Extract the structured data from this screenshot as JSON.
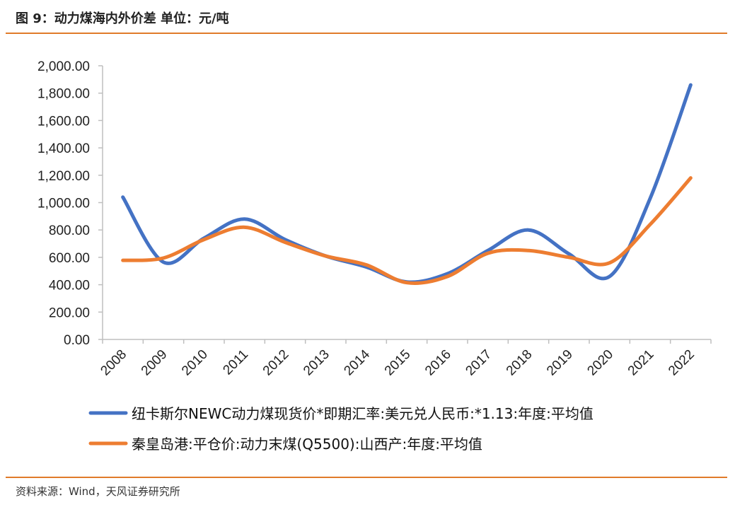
{
  "figure": {
    "title": "图 9：动力煤海内外价差  单位：元/吨",
    "source": "资料来源：Wind，天风证券研究所"
  },
  "chart_data": {
    "type": "line",
    "title": "",
    "xlabel": "",
    "ylabel": "",
    "categories": [
      "2008",
      "2009",
      "2010",
      "2011",
      "2012",
      "2013",
      "2014",
      "2015",
      "2016",
      "2017",
      "2018",
      "2019",
      "2020",
      "2021",
      "2022"
    ],
    "ylim": [
      0,
      2000
    ],
    "yticks": [
      0,
      200,
      400,
      600,
      800,
      1000,
      1200,
      1400,
      1600,
      1800,
      2000
    ],
    "ytick_labels": [
      "0.00",
      "200.00",
      "400.00",
      "600.00",
      "800.00",
      "1,000.00",
      "1,200.00",
      "1,400.00",
      "1,600.00",
      "1,800.00",
      "2,000.00"
    ],
    "grid": false,
    "legend_position": "bottom",
    "series": [
      {
        "name": "纽卡斯尔NEWC动力煤现货价*即期汇率:美元兑人民币:*1.13:年度:平均值",
        "color": "#4472c4",
        "values": [
          1040,
          565,
          740,
          880,
          730,
          610,
          530,
          420,
          480,
          650,
          800,
          625,
          460,
          1030,
          1860
        ]
      },
      {
        "name": "秦皇岛港:平仓价:动力末煤(Q5500):山西产:年度:平均值",
        "color": "#ed7d31",
        "values": [
          578,
          595,
          730,
          820,
          710,
          610,
          545,
          415,
          460,
          630,
          650,
          600,
          560,
          840,
          1180
        ]
      }
    ]
  }
}
